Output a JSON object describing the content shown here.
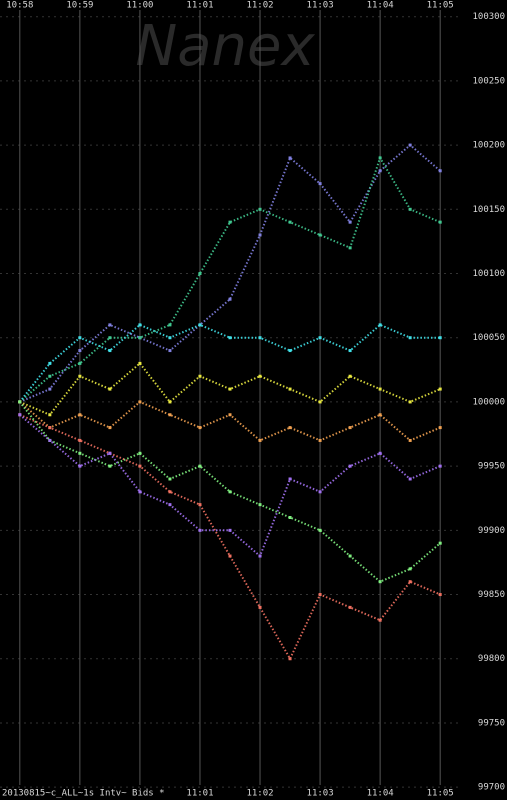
{
  "chart_data": {
    "type": "scatter",
    "watermark": "Nanex",
    "footer": "20130815~c_ALL~1s Intv~ Bids *",
    "x": [
      658,
      658.5,
      659,
      659.5,
      660,
      660.5,
      661,
      661.5,
      662,
      662.5,
      663,
      663.5,
      664,
      664.5,
      665
    ],
    "xlim": [
      657.67,
      665.33
    ],
    "xticks": [
      {
        "value": 658,
        "label": "10:58"
      },
      {
        "value": 659,
        "label": "10:59"
      },
      {
        "value": 660,
        "label": "11:00"
      },
      {
        "value": 661,
        "label": "11:01"
      },
      {
        "value": 662,
        "label": "11:02"
      },
      {
        "value": 663,
        "label": "11:03"
      },
      {
        "value": 664,
        "label": "11:04"
      },
      {
        "value": 665,
        "label": "11:05"
      }
    ],
    "ylim": [
      99690,
      100313
    ],
    "yticks": [
      99700,
      99750,
      99800,
      99850,
      99900,
      99950,
      100000,
      100050,
      100100,
      100150,
      100200,
      100250,
      100300
    ],
    "grid": true,
    "series": [
      {
        "color": "#8080e0",
        "values": [
          100000,
          100010,
          100040,
          100060,
          100050,
          100040,
          100060,
          100080,
          100130,
          100190,
          100170,
          100140,
          100180,
          100200,
          100180
        ]
      },
      {
        "color": "#40c890",
        "values": [
          100000,
          100020,
          100030,
          100050,
          100050,
          100060,
          100100,
          100140,
          100150,
          100140,
          100130,
          100120,
          100190,
          100150,
          100140
        ]
      },
      {
        "color": "#40e0e8",
        "values": [
          100000,
          100030,
          100050,
          100040,
          100060,
          100050,
          100060,
          100050,
          100050,
          100040,
          100050,
          100040,
          100060,
          100050,
          100050
        ]
      },
      {
        "color": "#e8e840",
        "values": [
          100000,
          99990,
          100020,
          100010,
          100030,
          100000,
          100020,
          100010,
          100020,
          100010,
          100000,
          100020,
          100010,
          100000,
          100010
        ]
      },
      {
        "color": "#f0a050",
        "values": [
          100000,
          99980,
          99990,
          99980,
          100000,
          99990,
          99980,
          99990,
          99970,
          99980,
          99970,
          99980,
          99990,
          99970,
          99980
        ]
      },
      {
        "color": "#f07060",
        "values": [
          99990,
          99980,
          99970,
          99960,
          99950,
          99930,
          99920,
          99880,
          99840,
          99800,
          99850,
          99840,
          99830,
          99860,
          99850
        ]
      },
      {
        "color": "#80f080",
        "values": [
          100000,
          99970,
          99960,
          99950,
          99960,
          99940,
          99950,
          99930,
          99920,
          99910,
          99900,
          99880,
          99860,
          99870,
          99890
        ]
      },
      {
        "color": "#a070f0",
        "values": [
          99990,
          99970,
          99950,
          99960,
          99930,
          99920,
          99900,
          99900,
          99880,
          99940,
          99930,
          99950,
          99960,
          99940,
          99950
        ]
      }
    ]
  }
}
